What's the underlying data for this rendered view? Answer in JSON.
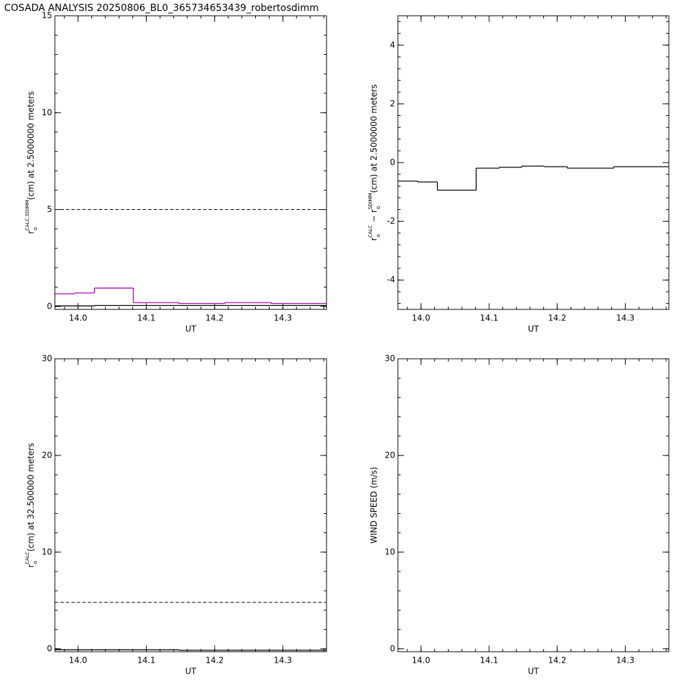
{
  "title": "COSADA ANALYSIS 20250806_BL0_365734653439_robertosdimm",
  "chart_data": [
    {
      "type": "step",
      "x": [
        13.966,
        13.995,
        14.024,
        14.081,
        14.115,
        14.148,
        14.181,
        14.215,
        14.283
      ],
      "series": [
        {
          "name": "rCALC",
          "color": "#000000",
          "values": [
            0.03,
            0.03,
            0.05,
            0.05,
            0.05,
            0.05,
            0.05,
            0.05,
            0.05
          ]
        },
        {
          "name": "rSDIMM",
          "color": "#b000b0",
          "values": [
            0.65,
            0.7,
            0.95,
            0.2,
            0.2,
            0.15,
            0.15,
            0.2,
            0.15
          ]
        }
      ],
      "reference_line": 5,
      "reference_style": "dashed",
      "xlim": [
        13.966,
        14.364
      ],
      "xticks": [
        {
          "value": 14,
          "label": "14.0"
        },
        14.1,
        14.2,
        14.3
      ],
      "ylim": [
        -0.15,
        15
      ],
      "yticks": [
        0,
        5,
        10,
        15
      ],
      "xlabel": "UT",
      "ylabel_parts": [
        {
          "text": "r"
        },
        {
          "text": "o",
          "pos": "sub"
        },
        {
          "text": "CALC,SDIMM",
          "pos": "sup"
        },
        {
          "text": "(cm)  at  2.5000000 meters"
        }
      ]
    },
    {
      "type": "step",
      "x": [
        13.966,
        13.995,
        14.024,
        14.081,
        14.115,
        14.148,
        14.181,
        14.215,
        14.283
      ],
      "series": [
        {
          "name": "difference",
          "color": "#000000",
          "values": [
            -0.63,
            -0.66,
            -0.94,
            -0.19,
            -0.16,
            -0.12,
            -0.14,
            -0.19,
            -0.14
          ]
        }
      ],
      "xlim": [
        13.966,
        14.364
      ],
      "xticks": [
        {
          "value": 14,
          "label": "14.0"
        },
        14.1,
        14.2,
        14.3
      ],
      "ylim": [
        -5,
        5
      ],
      "yticks": [
        -4,
        -2,
        0,
        2,
        4
      ],
      "xlabel": "UT",
      "ylabel_parts": [
        {
          "text": "r"
        },
        {
          "text": "o",
          "pos": "sub"
        },
        {
          "text": "CALC",
          "pos": "sup"
        },
        {
          "text": "  − r"
        },
        {
          "text": "o",
          "pos": "sub"
        },
        {
          "text": "SDIMM",
          "pos": "sup"
        },
        {
          "text": "(cm) at 2.5000000 meters"
        }
      ]
    },
    {
      "type": "step",
      "x": [
        13.966,
        13.995,
        14.024,
        14.081,
        14.115,
        14.148,
        14.181,
        14.215,
        14.283
      ],
      "series": [
        {
          "name": "rCALC",
          "color": "#000000",
          "values": [
            -0.1,
            -0.1,
            -0.1,
            -0.1,
            -0.1,
            -0.15,
            -0.15,
            -0.15,
            -0.15
          ]
        }
      ],
      "reference_line": 4.8,
      "reference_style": "dashed",
      "xlim": [
        13.966,
        14.364
      ],
      "xticks": [
        {
          "value": 14,
          "label": "14.0"
        },
        14.1,
        14.2,
        14.3
      ],
      "ylim": [
        -0.3,
        30
      ],
      "yticks": [
        0,
        10,
        20,
        30
      ],
      "xlabel": "UT",
      "ylabel_parts": [
        {
          "text": "r"
        },
        {
          "text": "o",
          "pos": "sub"
        },
        {
          "text": "CALC",
          "pos": "sup"
        },
        {
          "text": "(cm) at 32.500000 meters"
        }
      ]
    },
    {
      "type": "step",
      "x": [],
      "series": [],
      "xlim": [
        13.966,
        14.364
      ],
      "xticks": [
        {
          "value": 14,
          "label": "14.0"
        },
        14.1,
        14.2,
        14.3
      ],
      "ylim": [
        -0.3,
        30
      ],
      "yticks": [
        0,
        10,
        20,
        30
      ],
      "xlabel": "UT",
      "ylabel_parts": [
        {
          "text": "WIND SPEED (m/s)"
        }
      ]
    }
  ]
}
